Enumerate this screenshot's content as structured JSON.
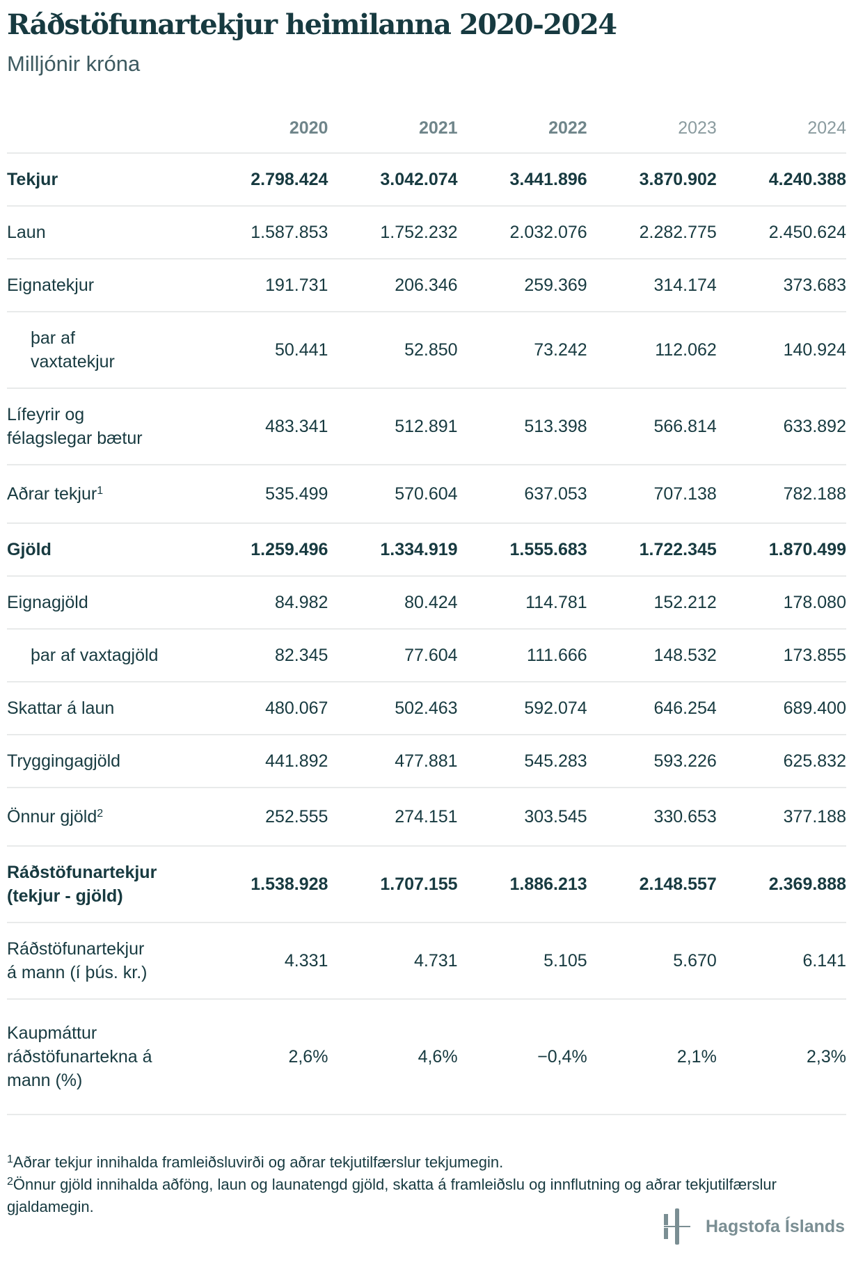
{
  "title": "Ráðstöfunartekjur heimilanna 2020-2024",
  "subtitle": "Milljónir króna",
  "columns": [
    "2020",
    "2021",
    "2022",
    "2023",
    "2024"
  ],
  "rows": [
    {
      "label": "Tekjur",
      "values": [
        "2.798.424",
        "3.042.074",
        "3.441.896",
        "3.870.902",
        "4.240.388"
      ]
    },
    {
      "label": "Laun",
      "values": [
        "1.587.853",
        "1.752.232",
        "2.032.076",
        "2.282.775",
        "2.450.624"
      ]
    },
    {
      "label": "Eignatekjur",
      "values": [
        "191.731",
        "206.346",
        "259.369",
        "314.174",
        "373.683"
      ]
    },
    {
      "label": "þar af vaxtatekjur",
      "values": [
        "50.441",
        "52.850",
        "73.242",
        "112.062",
        "140.924"
      ]
    },
    {
      "label": "Lífeyrir og félagslegar bætur",
      "values": [
        "483.341",
        "512.891",
        "513.398",
        "566.814",
        "633.892"
      ]
    },
    {
      "label": "Aðrar tekjur",
      "note": "1",
      "values": [
        "535.499",
        "570.604",
        "637.053",
        "707.138",
        "782.188"
      ]
    },
    {
      "label": "Gjöld",
      "values": [
        "1.259.496",
        "1.334.919",
        "1.555.683",
        "1.722.345",
        "1.870.499"
      ]
    },
    {
      "label": "Eignagjöld",
      "values": [
        "84.982",
        "80.424",
        "114.781",
        "152.212",
        "178.080"
      ]
    },
    {
      "label": "þar af vaxtagjöld",
      "values": [
        "82.345",
        "77.604",
        "111.666",
        "148.532",
        "173.855"
      ]
    },
    {
      "label": "Skattar á laun",
      "values": [
        "480.067",
        "502.463",
        "592.074",
        "646.254",
        "689.400"
      ]
    },
    {
      "label": "Tryggingagjöld",
      "values": [
        "441.892",
        "477.881",
        "545.283",
        "593.226",
        "625.832"
      ]
    },
    {
      "label": "Önnur gjöld",
      "note": "2",
      "values": [
        "252.555",
        "274.151",
        "303.545",
        "330.653",
        "377.188"
      ]
    },
    {
      "label": "Ráðstöfunartekjur (tekjur - gjöld)",
      "values": [
        "1.538.928",
        "1.707.155",
        "1.886.213",
        "2.148.557",
        "2.369.888"
      ]
    },
    {
      "label": "Ráðstöfunartekjur á mann (í þús. kr.)",
      "values": [
        "4.331",
        "4.731",
        "5.105",
        "5.670",
        "6.141"
      ]
    },
    {
      "label": "Kaupmáttur ráðstöfunartekna á mann (%)",
      "values": [
        "2,6%",
        "4,6%",
        "−0,4%",
        "2,1%",
        "2,3%"
      ]
    }
  ],
  "footnotes": [
    {
      "mark": "1",
      "text": "Aðrar tekjur innihalda framleiðsluvirði og aðrar tekjutilfærslur tekjumegin."
    },
    {
      "mark": "2",
      "text": "Önnur gjöld innihalda aðföng, laun og launatengd gjöld, skatta á framleiðslu og innflutning og aðrar tekjutilfærslur gjaldamegin."
    }
  ],
  "logo": {
    "text": "Hagstofa Íslands",
    "color": "#7a8e93"
  },
  "colors": {
    "text": "#173a40",
    "header": "#6f858a",
    "divider": "#e8eaea"
  }
}
